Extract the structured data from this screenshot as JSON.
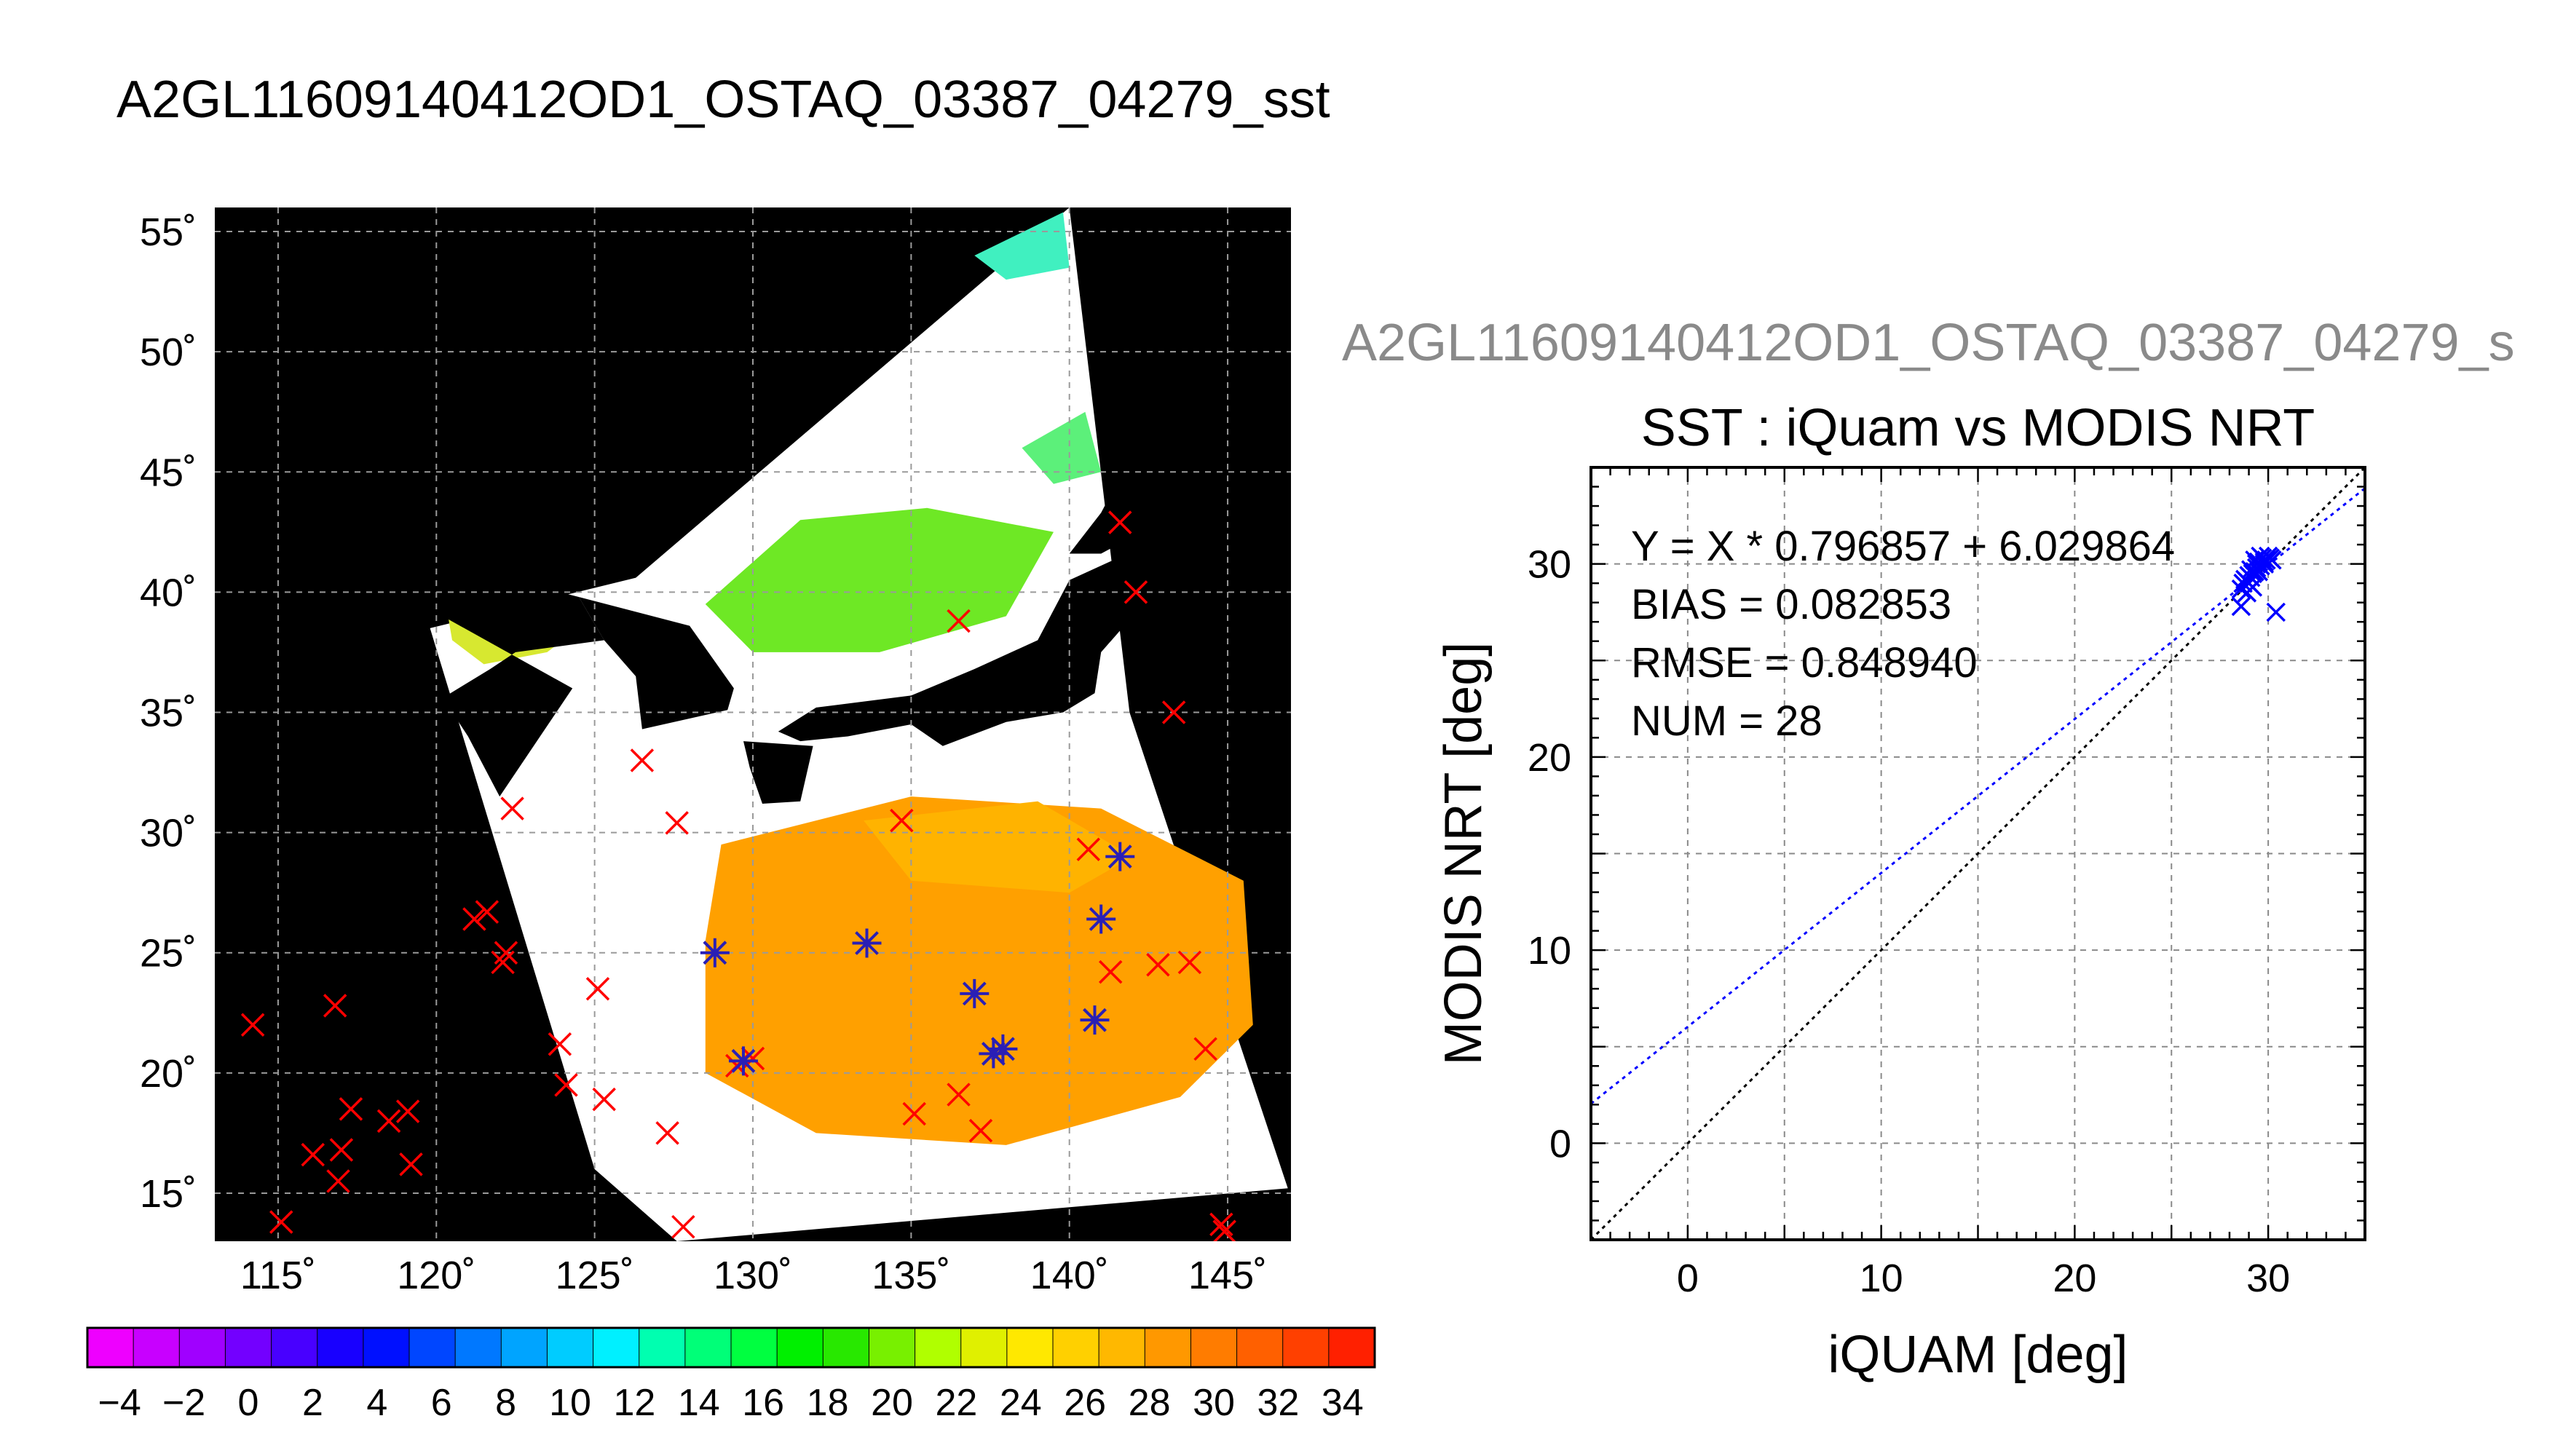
{
  "main_title": "A2GL11609140412OD1_OSTAQ_03387_04279_sst",
  "scatter_supertitle": "A2GL11609140412OD1_OSTAQ_03387_04279_s",
  "colors": {
    "map_background": "#000000",
    "land_cloud": "#ffffff",
    "buoy_marker": "#ff0000",
    "matchup_marker": "#2a1fb5",
    "regression_line": "#0000ff",
    "identity_line": "#000000"
  },
  "chart_data": [
    {
      "type": "map",
      "projection": "lat-lon",
      "xlim": [
        113,
        147
      ],
      "ylim": [
        13,
        56
      ],
      "lon_ticks": [
        115,
        120,
        125,
        130,
        135,
        140,
        145
      ],
      "lat_ticks": [
        15,
        20,
        25,
        30,
        35,
        40,
        45,
        50,
        55
      ],
      "lon_tick_labels": [
        "115˚",
        "120˚",
        "125˚",
        "130˚",
        "135˚",
        "140˚",
        "145˚"
      ],
      "lat_tick_labels": [
        "15˚",
        "20˚",
        "25˚",
        "30˚",
        "35˚",
        "40˚",
        "45˚",
        "50˚",
        "55˚"
      ],
      "grid": true,
      "swath_polygon": [
        [
          126.3,
          40.6
        ],
        [
          140.0,
          56.0
        ],
        [
          141.9,
          35.0
        ],
        [
          146.9,
          15.2
        ],
        [
          127.6,
          13.0
        ],
        [
          125.0,
          16.0
        ],
        [
          119.8,
          38.5
        ]
      ],
      "sst_regions": [
        {
          "name": "warm-sea",
          "color": "#ffa000",
          "polygon": [
            [
              129.0,
              29.5
            ],
            [
              135.0,
              31.5
            ],
            [
              141.0,
              31.0
            ],
            [
              145.5,
              28.0
            ],
            [
              145.8,
              22.0
            ],
            [
              143.5,
              19.0
            ],
            [
              138.0,
              17.0
            ],
            [
              132.0,
              17.5
            ],
            [
              128.5,
              20.0
            ],
            [
              128.5,
              25.5
            ]
          ]
        },
        {
          "name": "subtropical-orange",
          "color": "#ffb300",
          "polygon": [
            [
              133.5,
              30.5
            ],
            [
              139.0,
              31.3
            ],
            [
              142.0,
              29.0
            ],
            [
              140.0,
              27.5
            ],
            [
              135.0,
              28.0
            ]
          ]
        },
        {
          "name": "bohai-yellow",
          "color": "#d7e830",
          "polygon": [
            [
              120.2,
              40.3
            ],
            [
              122.5,
              40.0
            ],
            [
              124.5,
              38.5
            ],
            [
              123.5,
              37.5
            ],
            [
              121.5,
              37.0
            ],
            [
              120.5,
              38.0
            ]
          ]
        },
        {
          "name": "east-sea-green",
          "color": "#6ee825",
          "polygon": [
            [
              128.5,
              39.5
            ],
            [
              131.5,
              43.0
            ],
            [
              135.5,
              43.5
            ],
            [
              139.5,
              42.5
            ],
            [
              138.0,
              39.0
            ],
            [
              134.0,
              37.5
            ],
            [
              130.0,
              37.5
            ]
          ]
        },
        {
          "name": "okhotsk-cyan",
          "color": "#40f0c0",
          "polygon": [
            [
              137.0,
              54.0
            ],
            [
              139.8,
              55.8
            ],
            [
              140.0,
              53.5
            ],
            [
              138.0,
              53.0
            ]
          ]
        },
        {
          "name": "tatar-green",
          "color": "#5cf07a",
          "polygon": [
            [
              138.5,
              46.0
            ],
            [
              140.5,
              47.5
            ],
            [
              141.0,
              45.0
            ],
            [
              139.5,
              44.5
            ]
          ]
        }
      ],
      "land_regions": [
        {
          "name": "honshu",
          "polygon": [
            [
              130.8,
              34.2
            ],
            [
              132.0,
              35.2
            ],
            [
              135.0,
              35.7
            ],
            [
              137.0,
              36.8
            ],
            [
              139.0,
              38.0
            ],
            [
              140.0,
              40.5
            ],
            [
              141.5,
              41.4
            ],
            [
              142.0,
              39.0
            ],
            [
              141.0,
              37.5
            ],
            [
              140.8,
              35.8
            ],
            [
              139.8,
              35.0
            ],
            [
              138.0,
              34.6
            ],
            [
              136.0,
              33.6
            ],
            [
              135.0,
              34.5
            ],
            [
              133.0,
              34.0
            ],
            [
              131.5,
              33.8
            ]
          ]
        },
        {
          "name": "kyushu-shikoku",
          "polygon": [
            [
              129.7,
              33.8
            ],
            [
              131.9,
              33.6
            ],
            [
              131.5,
              31.3
            ],
            [
              130.3,
              31.2
            ],
            [
              129.9,
              32.7
            ]
          ]
        },
        {
          "name": "hokkaido",
          "polygon": [
            [
              140.0,
              41.6
            ],
            [
              141.0,
              43.3
            ],
            [
              141.8,
              45.3
            ],
            [
              143.0,
              44.0
            ],
            [
              144.0,
              43.0
            ],
            [
              142.0,
              42.3
            ],
            [
              141.0,
              41.6
            ]
          ]
        },
        {
          "name": "korea",
          "polygon": [
            [
              124.5,
              39.8
            ],
            [
              128.0,
              38.6
            ],
            [
              129.4,
              36.0
            ],
            [
              129.2,
              35.1
            ],
            [
              126.5,
              34.3
            ],
            [
              126.3,
              36.5
            ],
            [
              125.3,
              38.0
            ]
          ]
        },
        {
          "name": "china-coast",
          "polygon": [
            [
              119.5,
              40.7
            ],
            [
              121.5,
              40.8
            ],
            [
              124.5,
              39.8
            ],
            [
              125.3,
              38.0
            ],
            [
              122.5,
              37.5
            ],
            [
              121.7,
              36.8
            ],
            [
              120.2,
              35.6
            ],
            [
              121.0,
              34.0
            ],
            [
              122.0,
              31.5
            ],
            [
              124.3,
              36.0
            ],
            [
              120.2,
              39.0
            ]
          ]
        }
      ],
      "series": [
        {
          "marker": "x",
          "points": [
            [
              114.2,
              22.0
            ],
            [
              115.1,
              13.8
            ],
            [
              116.1,
              16.6
            ],
            [
              116.8,
              22.8
            ],
            [
              116.9,
              15.5
            ],
            [
              117.0,
              16.8
            ],
            [
              117.3,
              18.5
            ],
            [
              118.5,
              18.0
            ],
            [
              119.1,
              18.4
            ],
            [
              119.2,
              16.2
            ],
            [
              121.2,
              26.4
            ],
            [
              121.6,
              26.7
            ],
            [
              122.1,
              24.6
            ],
            [
              122.2,
              25.0
            ],
            [
              122.4,
              31.0
            ],
            [
              123.9,
              21.2
            ],
            [
              124.1,
              19.5
            ],
            [
              125.1,
              23.5
            ],
            [
              125.3,
              18.9
            ],
            [
              126.5,
              33.0
            ],
            [
              127.3,
              17.5
            ],
            [
              127.8,
              13.6
            ],
            [
              127.6,
              30.4
            ],
            [
              129.5,
              20.3
            ],
            [
              130.0,
              20.6
            ],
            [
              134.7,
              30.5
            ],
            [
              135.1,
              18.3
            ],
            [
              136.5,
              38.8
            ],
            [
              136.5,
              19.1
            ],
            [
              137.2,
              17.6
            ],
            [
              140.6,
              29.3
            ],
            [
              141.3,
              24.2
            ],
            [
              141.6,
              42.9
            ],
            [
              142.1,
              40.0
            ],
            [
              142.8,
              24.5
            ],
            [
              143.3,
              35.0
            ],
            [
              143.8,
              24.6
            ],
            [
              144.3,
              21.0
            ],
            [
              144.8,
              13.7
            ],
            [
              144.9,
              13.4
            ]
          ]
        },
        {
          "marker": "asterisk",
          "points": [
            [
              128.8,
              25.0
            ],
            [
              129.7,
              20.5
            ],
            [
              133.6,
              25.4
            ],
            [
              137.0,
              23.3
            ],
            [
              137.6,
              20.8
            ],
            [
              137.9,
              21.0
            ],
            [
              141.0,
              26.4
            ],
            [
              141.6,
              29.0
            ],
            [
              140.8,
              22.2
            ]
          ]
        }
      ]
    },
    {
      "type": "colorbar",
      "min": -5,
      "max": 35,
      "tick_labels": [
        "−4",
        "−2",
        "0",
        "2",
        "4",
        "6",
        "8",
        "10",
        "12",
        "14",
        "16",
        "18",
        "20",
        "22",
        "24",
        "26",
        "28",
        "30",
        "32",
        "34"
      ],
      "colors": [
        "#ee00ff",
        "#c800ff",
        "#a000ff",
        "#7300ff",
        "#4800ff",
        "#1800ff",
        "#0010ff",
        "#0046ff",
        "#0078ff",
        "#00a4ff",
        "#00ccff",
        "#00f0ff",
        "#00ffb0",
        "#00ff78",
        "#00ff40",
        "#00f000",
        "#28e800",
        "#78f000",
        "#b0ff00",
        "#e0f000",
        "#ffe800",
        "#ffd000",
        "#ffb800",
        "#ff9800",
        "#ff7c00",
        "#ff6000",
        "#ff4000",
        "#ff2000"
      ]
    },
    {
      "type": "scatter",
      "title": "SST : iQuam vs MODIS NRT",
      "xlabel": "iQUAM [deg]",
      "ylabel": "MODIS NRT [deg]",
      "xlim": [
        -5,
        35
      ],
      "ylim": [
        -5,
        35
      ],
      "x_ticks": [
        0,
        10,
        20,
        30
      ],
      "y_ticks": [
        0,
        10,
        20,
        30
      ],
      "grid": true,
      "annotations": [
        "Y = X * 0.796857 + 6.029864",
        "BIAS = 0.082853",
        "RMSE = 0.848940",
        "NUM = 28"
      ],
      "regression": {
        "slope": 0.796857,
        "intercept": 6.029864
      },
      "identity_line": true,
      "points": [
        [
          28.6,
          28.7
        ],
        [
          28.8,
          29.2
        ],
        [
          29.0,
          29.0
        ],
        [
          29.2,
          29.5
        ],
        [
          29.4,
          29.8
        ],
        [
          29.1,
          29.3
        ],
        [
          29.5,
          30.1
        ],
        [
          29.7,
          30.3
        ],
        [
          29.9,
          30.2
        ],
        [
          30.1,
          30.3
        ],
        [
          29.6,
          29.9
        ],
        [
          29.3,
          29.6
        ],
        [
          29.0,
          29.4
        ],
        [
          28.9,
          29.1
        ],
        [
          28.7,
          29.0
        ],
        [
          29.8,
          30.0
        ],
        [
          30.0,
          30.4
        ],
        [
          29.4,
          30.0
        ],
        [
          29.2,
          28.8
        ],
        [
          28.9,
          28.5
        ],
        [
          28.6,
          27.8
        ],
        [
          29.3,
          30.2
        ],
        [
          29.6,
          30.4
        ],
        [
          29.8,
          30.1
        ],
        [
          30.2,
          30.2
        ],
        [
          30.4,
          27.5
        ],
        [
          29.1,
          29.7
        ],
        [
          29.5,
          29.6
        ]
      ]
    }
  ]
}
